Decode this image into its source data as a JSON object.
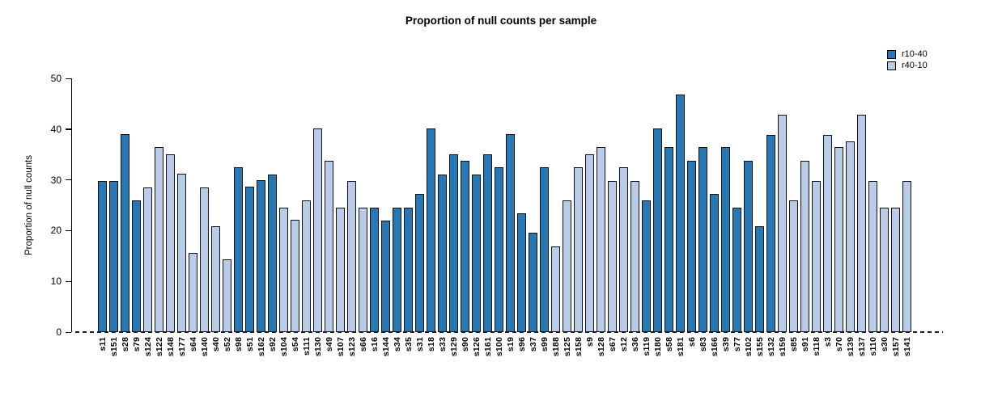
{
  "title": "Proportion of null counts per sample",
  "y_axis": {
    "label": "Proportion of null counts",
    "ticks": [
      0,
      10,
      20,
      30,
      40,
      50
    ]
  },
  "legend": [
    {
      "label": "r10-40",
      "color": "#2777b4"
    },
    {
      "label": "r40-10",
      "color": "#b9cbe6"
    }
  ],
  "chart_data": {
    "type": "bar",
    "title": "Proportion of null counts per sample",
    "xlabel": "",
    "ylabel": "Proportion of null counts",
    "ylim": [
      0,
      50
    ],
    "grid": false,
    "legend_position": "top-right",
    "baseline_style": "dashed",
    "series_colors": {
      "r10-40": "#2777b4",
      "r40-10": "#b9cbe6"
    },
    "categories": [
      "s11",
      "s151",
      "s28",
      "s79",
      "s124",
      "s122",
      "s148",
      "s177",
      "s64",
      "s140",
      "s40",
      "s52",
      "s98",
      "s51",
      "s162",
      "s92",
      "s104",
      "s54",
      "s111",
      "s130",
      "s49",
      "s107",
      "s123",
      "s66",
      "s16",
      "s144",
      "s34",
      "s35",
      "s31",
      "s18",
      "s33",
      "s129",
      "s90",
      "s126",
      "s161",
      "s100",
      "s19",
      "s96",
      "s37",
      "s99",
      "s188",
      "s125",
      "s158",
      "s9",
      "s128",
      "s67",
      "s12",
      "s36",
      "s119",
      "s180",
      "s58",
      "s181",
      "s6",
      "s83",
      "s166",
      "s39",
      "s77",
      "s102",
      "s155",
      "s132",
      "s159",
      "s85",
      "s91",
      "s118",
      "s3",
      "s70",
      "s139",
      "s137",
      "s110",
      "s30",
      "s157",
      "s141"
    ],
    "values": [
      29.8,
      29.8,
      39.0,
      26.0,
      28.5,
      36.4,
      35.0,
      31.2,
      15.6,
      28.5,
      20.8,
      14.3,
      32.5,
      28.6,
      29.9,
      31.1,
      24.5,
      22.1,
      26.0,
      40.2,
      33.8,
      24.5,
      29.8,
      24.5,
      24.5,
      22.0,
      24.5,
      24.5,
      27.3,
      40.2,
      31.1,
      35.0,
      33.7,
      31.1,
      35.0,
      32.5,
      39.0,
      23.4,
      19.6,
      32.5,
      16.9,
      26.0,
      32.5,
      35.0,
      36.4,
      29.8,
      32.5,
      29.8,
      26.0,
      40.2,
      36.4,
      46.8,
      33.7,
      36.4,
      27.3,
      36.4,
      24.5,
      33.7,
      20.8,
      38.9,
      42.8,
      26.0,
      33.7,
      29.8,
      38.9,
      36.4,
      37.6,
      42.8,
      29.8,
      24.5,
      24.5,
      29.8
    ],
    "groups": [
      "r10-40",
      "r10-40",
      "r10-40",
      "r10-40",
      "r40-10",
      "r40-10",
      "r40-10",
      "r40-10",
      "r40-10",
      "r40-10",
      "r40-10",
      "r40-10",
      "r10-40",
      "r10-40",
      "r10-40",
      "r10-40",
      "r40-10",
      "r40-10",
      "r40-10",
      "r40-10",
      "r40-10",
      "r40-10",
      "r40-10",
      "r40-10",
      "r10-40",
      "r10-40",
      "r10-40",
      "r10-40",
      "r10-40",
      "r10-40",
      "r10-40",
      "r10-40",
      "r10-40",
      "r10-40",
      "r10-40",
      "r10-40",
      "r10-40",
      "r10-40",
      "r10-40",
      "r10-40",
      "r40-10",
      "r40-10",
      "r40-10",
      "r40-10",
      "r40-10",
      "r40-10",
      "r40-10",
      "r40-10",
      "r10-40",
      "r10-40",
      "r10-40",
      "r10-40",
      "r10-40",
      "r10-40",
      "r10-40",
      "r10-40",
      "r10-40",
      "r10-40",
      "r10-40",
      "r10-40",
      "r40-10",
      "r40-10",
      "r40-10",
      "r40-10",
      "r40-10",
      "r40-10",
      "r40-10",
      "r40-10",
      "r40-10",
      "r40-10",
      "r40-10",
      "r40-10"
    ]
  }
}
